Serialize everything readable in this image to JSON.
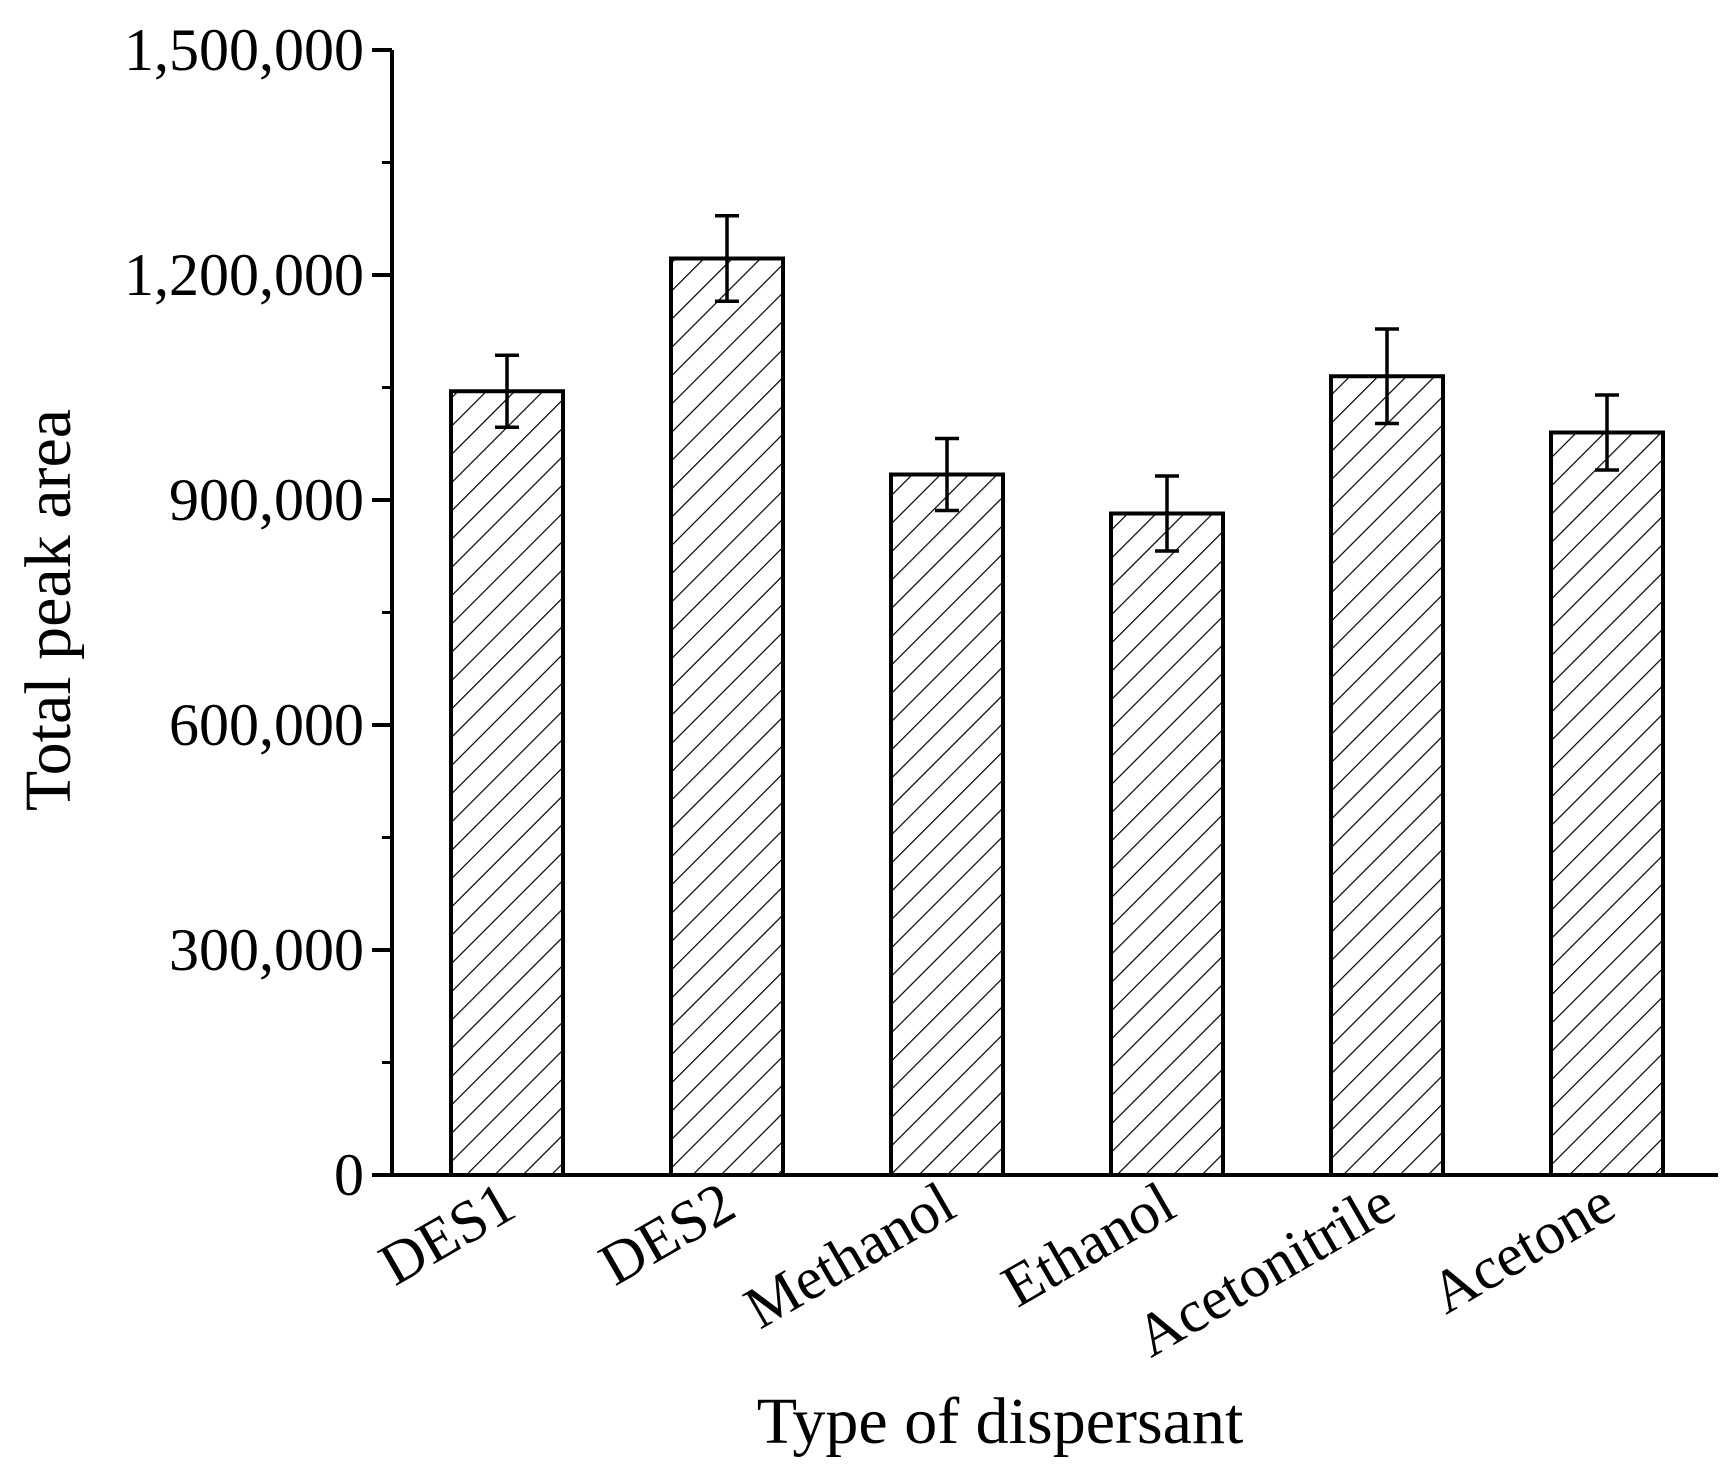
{
  "chart_data": {
    "type": "bar",
    "title": "",
    "xlabel": "Type of dispersant",
    "ylabel": "Total peak area",
    "categories": [
      "DES1",
      "DES2",
      "Methanol",
      "Ethanol",
      "Acetonitrile",
      "Acetone"
    ],
    "values": [
      1045000,
      1222000,
      934000,
      882000,
      1065000,
      990000
    ],
    "errors": [
      48000,
      57000,
      48000,
      50000,
      63000,
      50000
    ],
    "ylim": [
      0,
      1500000
    ],
    "yticks": [
      0,
      300000,
      600000,
      900000,
      1200000,
      1500000
    ],
    "ytick_labels": [
      "0",
      "300,000",
      "600,000",
      "900,000",
      "1,200,000",
      "1,500,000"
    ],
    "grid": false,
    "legend": "none",
    "bar_fill": "hatched",
    "colors": {
      "bar_edge": "#000000",
      "hatch": "#000000",
      "background": "#ffffff"
    }
  }
}
